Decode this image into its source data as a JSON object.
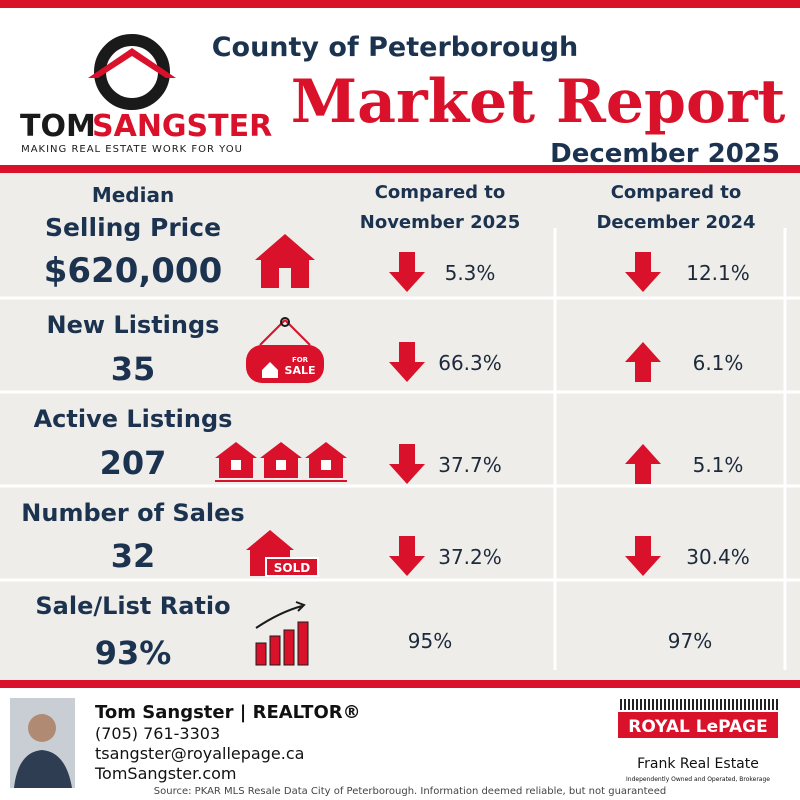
{
  "header": {
    "brand_first": "TOM",
    "brand_last": "SANGSTER",
    "tagline": "MAKING REAL ESTATE WORK FOR YOU",
    "region": "County of Peterborough",
    "title": "Market Report",
    "period": "December 2025"
  },
  "columns": [
    [
      "Compared to",
      "November 2025"
    ],
    [
      "Compared to",
      "December 2024"
    ]
  ],
  "metrics": [
    {
      "label": [
        "Median",
        "Selling Price"
      ],
      "value": "$620,000",
      "changes": [
        {
          "direction": "down",
          "value": "5.3%"
        },
        {
          "direction": "down",
          "value": "12.1%"
        }
      ]
    },
    {
      "label": [
        "New Listings"
      ],
      "value": "35",
      "changes": [
        {
          "direction": "down",
          "value": "66.3%"
        },
        {
          "direction": "up",
          "value": "6.1%"
        }
      ]
    },
    {
      "label": [
        "Active Listings"
      ],
      "value": "207",
      "changes": [
        {
          "direction": "down",
          "value": "37.7%"
        },
        {
          "direction": "up",
          "value": "5.1%"
        }
      ]
    },
    {
      "label": [
        "Number of Sales"
      ],
      "value": "32",
      "changes": [
        {
          "direction": "down",
          "value": "37.2%"
        },
        {
          "direction": "down",
          "value": "30.4%"
        }
      ]
    },
    {
      "label": [
        "Sale/List Ratio"
      ],
      "value": "93%",
      "changes": [
        {
          "value": "95%"
        },
        {
          "value": "97%"
        }
      ]
    }
  ],
  "footer": {
    "name": "Tom Sangster | REALTOR®",
    "phone": "(705) 761-3303",
    "email": "tsangster@royallepage.ca",
    "website": "TomSangster.com",
    "source": "Source: PKAR MLS Resale Data City of Peterborough. Information deemed reliable, but not guaranteed",
    "brokerage_brand": "ROYAL LePAGE",
    "brokerage_name": "Frank Real Estate",
    "brokerage_note": "Independently Owned and Operated, Brokerage"
  }
}
